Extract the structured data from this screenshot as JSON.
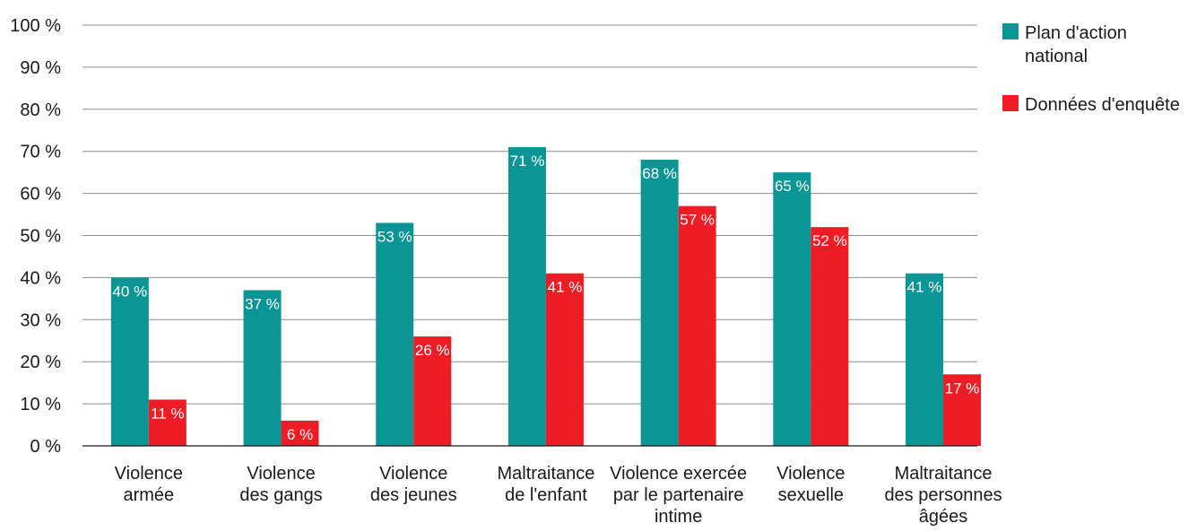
{
  "chart_data": {
    "type": "bar",
    "title": "",
    "xlabel": "",
    "ylabel": "",
    "ylim": [
      0,
      100
    ],
    "y_ticks": [
      "0 %",
      "10 %",
      "20 %",
      "30 %",
      "40 %",
      "50 %",
      "60 %",
      "70 %",
      "80 %",
      "90 %",
      "100 %"
    ],
    "grid": true,
    "legend_position": "top-right",
    "categories": [
      [
        "Violence",
        "armée"
      ],
      [
        "Violence",
        "des gangs"
      ],
      [
        "Violence",
        "des jeunes"
      ],
      [
        "Maltraitance",
        "de l'enfant"
      ],
      [
        "Violence exercée",
        "par le partenaire",
        "intime"
      ],
      [
        "Violence",
        "sexuelle"
      ],
      [
        "Maltraitance",
        "des personnes",
        "âgées"
      ]
    ],
    "series": [
      {
        "name": [
          "Plan d'action",
          "national"
        ],
        "color": "#0b9594",
        "values": [
          40,
          37,
          53,
          71,
          68,
          65,
          41
        ],
        "labels": [
          "40 %",
          "37 %",
          "53 %",
          "71 %",
          "68 %",
          "65 %",
          "41 %"
        ]
      },
      {
        "name": [
          "Données d'enquête"
        ],
        "color": "#ee1d25",
        "values": [
          11,
          6,
          26,
          41,
          57,
          52,
          17
        ],
        "labels": [
          "11 %",
          "6 %",
          "26 %",
          "41 %",
          "57 %",
          "52 %",
          "17 %"
        ]
      }
    ]
  }
}
